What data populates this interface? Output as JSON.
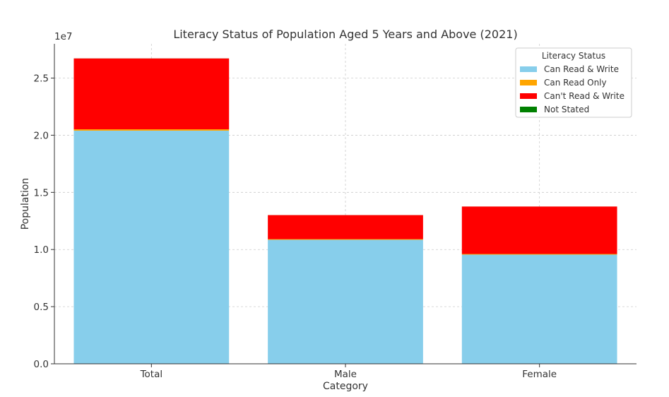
{
  "chart_data": {
    "type": "bar",
    "stacked": true,
    "title": "Literacy Status of Population Aged 5 Years and Above (2021)",
    "xlabel": "Category",
    "ylabel": "Population",
    "y_offset_label": "1e7",
    "categories": [
      "Total",
      "Male",
      "Female"
    ],
    "yticks": [
      0,
      5000000,
      10000000,
      15000000,
      20000000,
      25000000
    ],
    "ytick_labels": [
      "0.0",
      "0.5",
      "1.0",
      "1.5",
      "2.0",
      "2.5"
    ],
    "ylim": [
      0,
      28000000
    ],
    "grid": true,
    "legend": {
      "title": "Literacy Status",
      "placement": "top-right"
    },
    "series": [
      {
        "name": "Can Read & Write",
        "color": "#87CEEB",
        "values": [
          20400000,
          10850000,
          9550000
        ]
      },
      {
        "name": "Can Read Only",
        "color": "#FFA500",
        "values": [
          120000,
          60000,
          60000
        ]
      },
      {
        "name": "Can't Read & Write",
        "color": "#FF0000",
        "values": [
          6200000,
          2100000,
          4150000
        ]
      },
      {
        "name": "Not Stated",
        "color": "#008000",
        "values": [
          5000,
          3000,
          2000
        ]
      }
    ]
  }
}
